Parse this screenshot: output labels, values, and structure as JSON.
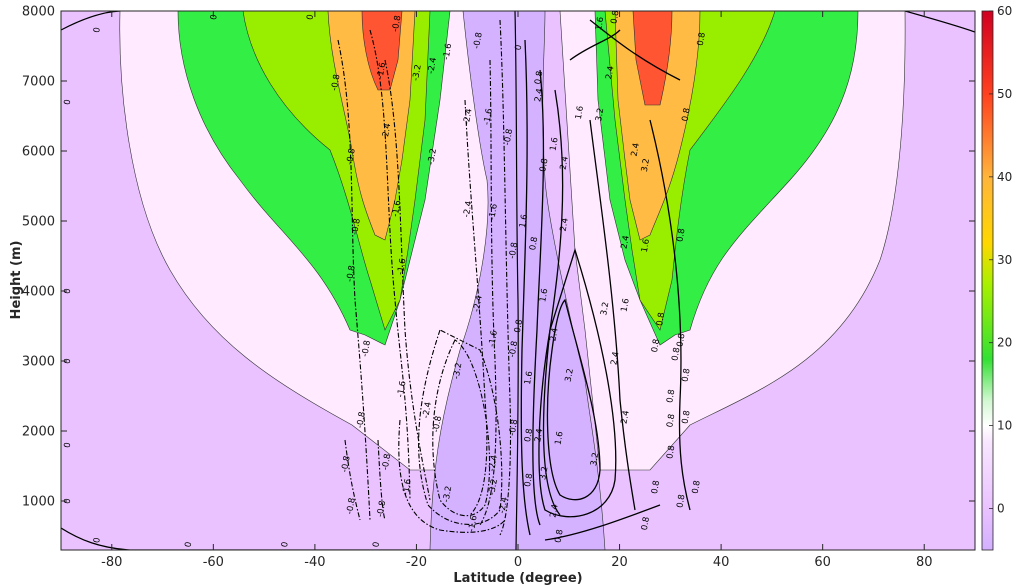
{
  "chart_data": {
    "type": "contour",
    "xlabel": "Latitude (degree)",
    "ylabel": "Height (m)",
    "xlim": [
      -90,
      90
    ],
    "ylim": [
      300,
      8000
    ],
    "xticks": [
      -80,
      -60,
      -40,
      -20,
      0,
      20,
      40,
      60,
      80
    ],
    "yticks": [
      1000,
      2000,
      3000,
      4000,
      5000,
      6000,
      7000,
      8000
    ],
    "colorbar": {
      "range": [
        -5,
        60
      ],
      "ticks": [
        0,
        10,
        20,
        30,
        40,
        50,
        60
      ],
      "stops": [
        {
          "value": -5,
          "color": "#d3b0ff"
        },
        {
          "value": 0,
          "color": "#e9c2ff"
        },
        {
          "value": 8,
          "color": "#f8e6ff"
        },
        {
          "value": 10,
          "color": "#ffffff"
        },
        {
          "value": 13,
          "color": "#d2f7d2"
        },
        {
          "value": 18,
          "color": "#33e033"
        },
        {
          "value": 27,
          "color": "#a8f000"
        },
        {
          "value": 32,
          "color": "#ffd700"
        },
        {
          "value": 40,
          "color": "#ffb43c"
        },
        {
          "value": 50,
          "color": "#ff4020"
        },
        {
          "value": 60,
          "color": "#d00020"
        }
      ]
    },
    "filled_levels": [
      {
        "name": "below 0",
        "color": "#e9c2ff"
      },
      {
        "name": "0-10",
        "color": "#ffeaff"
      },
      {
        "name": "10-20",
        "color": "#33ee44"
      },
      {
        "name": "20-30",
        "color": "#99ee00"
      },
      {
        "name": "30-40",
        "color": "#ffbb44"
      },
      {
        "name": "40-50",
        "color": "#ff5533"
      },
      {
        "name": "negative core",
        "color": "#d4b2ff"
      }
    ],
    "contour_labels": [
      {
        "text": "0",
        "x": -83,
        "y": 7730
      },
      {
        "text": "0",
        "x": -60,
        "y": 7980
      },
      {
        "text": "0",
        "x": -41,
        "y": 7980
      },
      {
        "text": "0",
        "x": -89,
        "y": 6700
      },
      {
        "text": "0",
        "x": -89,
        "y": 4000
      },
      {
        "text": "0",
        "x": -89,
        "y": 3000
      },
      {
        "text": "0",
        "x": -89,
        "y": 1800
      },
      {
        "text": "0",
        "x": -89,
        "y": 1000
      },
      {
        "text": "0",
        "x": -83,
        "y": 440
      },
      {
        "text": "0",
        "x": -65,
        "y": 380
      },
      {
        "text": "0",
        "x": -46,
        "y": 380
      },
      {
        "text": "0",
        "x": -28,
        "y": 380
      },
      {
        "text": "0",
        "x": 0,
        "y": 7480
      },
      {
        "text": "-0.8",
        "x": -24,
        "y": 7820
      },
      {
        "text": "-1.6",
        "x": -14,
        "y": 7420
      },
      {
        "text": "-0.8",
        "x": -8,
        "y": 7580
      },
      {
        "text": "-0.8",
        "x": -36,
        "y": 6980
      },
      {
        "text": "-1.6",
        "x": -27,
        "y": 7150
      },
      {
        "text": "-2.4",
        "x": -17,
        "y": 7220
      },
      {
        "text": "-3.2",
        "x": -20,
        "y": 7120
      },
      {
        "text": "-2.4",
        "x": -26,
        "y": 6280
      },
      {
        "text": "-2.4",
        "x": -10,
        "y": 6490
      },
      {
        "text": "-1.6",
        "x": -6,
        "y": 6490
      },
      {
        "text": "-0.8",
        "x": -2,
        "y": 6200
      },
      {
        "text": "-3.2",
        "x": -17,
        "y": 5920
      },
      {
        "text": "-0.8",
        "x": -33,
        "y": 5920
      },
      {
        "text": "-1.6",
        "x": -24,
        "y": 5180
      },
      {
        "text": "-0.8",
        "x": -32,
        "y": 4920
      },
      {
        "text": "-2.4",
        "x": -10,
        "y": 5170
      },
      {
        "text": "-1.6",
        "x": -5,
        "y": 5130
      },
      {
        "text": "-0.8",
        "x": -1,
        "y": 4580
      },
      {
        "text": "-0.8",
        "x": -33,
        "y": 4250
      },
      {
        "text": "-1.6",
        "x": -23,
        "y": 4350
      },
      {
        "text": "-2.4",
        "x": -8,
        "y": 3820
      },
      {
        "text": "-1.6",
        "x": -5,
        "y": 3320
      },
      {
        "text": "-0.8",
        "x": -1,
        "y": 3170
      },
      {
        "text": "-1.6",
        "x": -23,
        "y": 2600
      },
      {
        "text": "-0.8",
        "x": -30,
        "y": 3180
      },
      {
        "text": "-2.4",
        "x": -18,
        "y": 2300
      },
      {
        "text": "-3.2",
        "x": -12,
        "y": 2860
      },
      {
        "text": "-0.8",
        "x": -31,
        "y": 2160
      },
      {
        "text": "-0.8",
        "x": -34,
        "y": 1530
      },
      {
        "text": "-0.8",
        "x": -26,
        "y": 1560
      },
      {
        "text": "-1.6",
        "x": -22,
        "y": 1200
      },
      {
        "text": "-2.4",
        "x": -5,
        "y": 1540
      },
      {
        "text": "-3.2",
        "x": -14,
        "y": 1100
      },
      {
        "text": "-3.2",
        "x": -5,
        "y": 1200
      },
      {
        "text": "-2.4",
        "x": -3,
        "y": 940
      },
      {
        "text": "-0.8",
        "x": -33,
        "y": 930
      },
      {
        "text": "-0.8",
        "x": -27,
        "y": 890
      },
      {
        "text": "-1.6",
        "x": -9,
        "y": 680
      },
      {
        "text": "-0.8",
        "x": -1,
        "y": 2050
      },
      {
        "text": "-0.8",
        "x": -16,
        "y": 2100
      },
      {
        "text": "0.8",
        "x": 4,
        "y": 7050
      },
      {
        "text": "1.6",
        "x": 7,
        "y": 6100
      },
      {
        "text": "2.4",
        "x": 4,
        "y": 6800
      },
      {
        "text": "0.8",
        "x": 5,
        "y": 5800
      },
      {
        "text": "1.6",
        "x": 12,
        "y": 6550
      },
      {
        "text": "1.6",
        "x": 16,
        "y": 7820
      },
      {
        "text": "0.8",
        "x": 19,
        "y": 7980
      },
      {
        "text": "2.4",
        "x": 18,
        "y": 7120
      },
      {
        "text": "3.2",
        "x": 16,
        "y": 6520
      },
      {
        "text": "0.8",
        "x": 36,
        "y": 7600
      },
      {
        "text": "0.8",
        "x": 33,
        "y": 6520
      },
      {
        "text": "2.4",
        "x": 23,
        "y": 6020
      },
      {
        "text": "3.2",
        "x": 25,
        "y": 5800
      },
      {
        "text": "2.4",
        "x": 9,
        "y": 5830
      },
      {
        "text": "1.6",
        "x": 1,
        "y": 5000
      },
      {
        "text": "2.4",
        "x": 9,
        "y": 4950
      },
      {
        "text": "0.8",
        "x": 3,
        "y": 4680
      },
      {
        "text": "2.4",
        "x": 21,
        "y": 4700
      },
      {
        "text": "1.6",
        "x": 25,
        "y": 4650
      },
      {
        "text": "0.8",
        "x": 32,
        "y": 4800
      },
      {
        "text": "0.8",
        "x": 0,
        "y": 3500
      },
      {
        "text": "1.6",
        "x": 5,
        "y": 3940
      },
      {
        "text": "2.4",
        "x": 7,
        "y": 3380
      },
      {
        "text": "3.2",
        "x": 10,
        "y": 2800
      },
      {
        "text": "3.2",
        "x": 17,
        "y": 3750
      },
      {
        "text": "2.4",
        "x": 19,
        "y": 3040
      },
      {
        "text": "2.4",
        "x": 21,
        "y": 2200
      },
      {
        "text": "1.6",
        "x": 21,
        "y": 3800
      },
      {
        "text": "0.8",
        "x": 27,
        "y": 3220
      },
      {
        "text": "0.8",
        "x": 31,
        "y": 3100
      },
      {
        "text": "0.8",
        "x": 33,
        "y": 2800
      },
      {
        "text": "0.8",
        "x": 30,
        "y": 2150
      },
      {
        "text": "0.8",
        "x": 33,
        "y": 2200
      },
      {
        "text": "0.8",
        "x": 30,
        "y": 1700
      },
      {
        "text": "1.6",
        "x": 2,
        "y": 2760
      },
      {
        "text": "2.4",
        "x": 4,
        "y": 1940
      },
      {
        "text": "1.6",
        "x": 8,
        "y": 1900
      },
      {
        "text": "3.2",
        "x": 5,
        "y": 1400
      },
      {
        "text": "3.2",
        "x": 15,
        "y": 1600
      },
      {
        "text": "0.8",
        "x": 2,
        "y": 1940
      },
      {
        "text": "0.8",
        "x": 2,
        "y": 1300
      },
      {
        "text": "2.4",
        "x": 7,
        "y": 860
      },
      {
        "text": "0.8",
        "x": 8,
        "y": 500
      },
      {
        "text": "0.8",
        "x": 25,
        "y": 680
      },
      {
        "text": "0.8",
        "x": 35,
        "y": 1200
      },
      {
        "text": "0.8",
        "x": 32,
        "y": 1000
      },
      {
        "text": "0.8",
        "x": 27,
        "y": 1200
      },
      {
        "text": "0.8",
        "x": 28,
        "y": 3600
      },
      {
        "text": "0.8",
        "x": 32,
        "y": 3300
      },
      {
        "text": "0.8",
        "x": 30,
        "y": 2500
      }
    ]
  }
}
